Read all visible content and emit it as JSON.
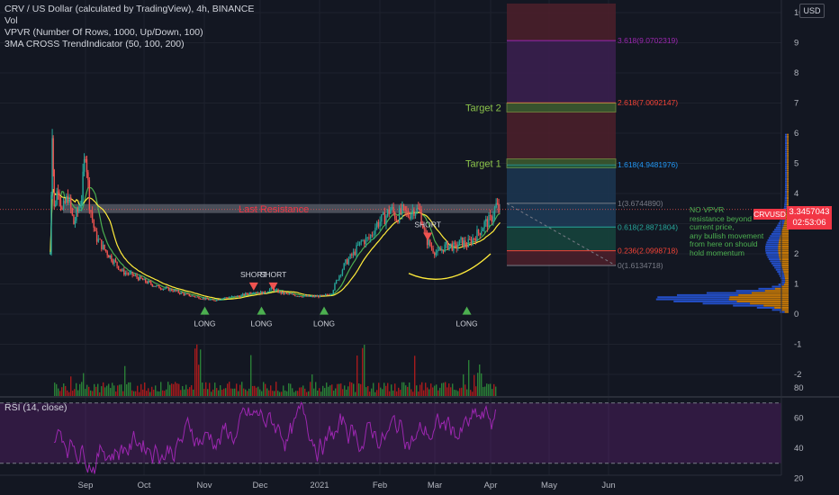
{
  "header": {
    "title": "CRV / US Dollar (calculated by TradingView), 4h, BINANCE",
    "indicators": [
      "Vol",
      "VPVR (Number Of Rows, 1000, Up/Down, 100)",
      "3MA CROSS TrendIndicator (50, 100, 200)"
    ]
  },
  "currency_button": "USD",
  "symbol_tag": "CRVUSD",
  "price_tag": {
    "price": "3.3457043",
    "countdown": "02:53:06"
  },
  "rsi_label": "RSI (14, close)",
  "note_lines": [
    "NO VPVR",
    "resistance beyond",
    "current price,",
    "any bullish movement",
    "from here on should",
    "hold momentum"
  ],
  "colors": {
    "background": "#131722",
    "up": "#26a69a",
    "down": "#ef5350",
    "ma_fast": "#4caf50",
    "ma_slow": "#ffeb3b",
    "rsi": "#9c27b0",
    "price_tag": "#f23645"
  },
  "chart_data": [
    {
      "type": "candlestick",
      "title": "CRV / US Dollar (calculated by TradingView), 4h, BINANCE",
      "x_tick_labels": [
        "Sep",
        "Oct",
        "Nov",
        "Dec",
        "2021",
        "Feb",
        "Mar",
        "Apr",
        "May",
        "Jun"
      ],
      "y_tick_labels": [
        "10",
        "9",
        "8",
        "7",
        "6",
        "5",
        "4",
        "3",
        "2",
        "1",
        "0",
        "-1",
        "-2"
      ],
      "ylim": [
        -2.5,
        10.3
      ],
      "close_series": [
        [
          "Aug 14",
          2.0
        ],
        [
          "Aug 15",
          6.2
        ],
        [
          "Aug 16",
          3.5
        ],
        [
          "Aug 18",
          4.3
        ],
        [
          "Aug 20",
          3.4
        ],
        [
          "Aug 23",
          3.9
        ],
        [
          "Aug 26",
          3.0
        ],
        [
          "Aug 28",
          3.4
        ],
        [
          "Aug 30",
          3.9
        ],
        [
          "Sep 1",
          5.5
        ],
        [
          "Sep 3",
          3.7
        ],
        [
          "Sep 6",
          2.6
        ],
        [
          "Sep 10",
          2.2
        ],
        [
          "Sep 15",
          1.8
        ],
        [
          "Sep 20",
          1.4
        ],
        [
          "Sep 25",
          1.3
        ],
        [
          "Oct 1",
          1.1
        ],
        [
          "Oct 8",
          0.9
        ],
        [
          "Oct 15",
          0.8
        ],
        [
          "Oct 22",
          0.65
        ],
        [
          "Oct 29",
          0.55
        ],
        [
          "Nov 5",
          0.45
        ],
        [
          "Nov 12",
          0.55
        ],
        [
          "Nov 19",
          0.6
        ],
        [
          "Nov 26",
          0.75
        ],
        [
          "Dec 1",
          0.7
        ],
        [
          "Dec 5",
          0.85
        ],
        [
          "Dec 10",
          0.7
        ],
        [
          "Dec 15",
          0.65
        ],
        [
          "Dec 20",
          0.6
        ],
        [
          "Dec 25",
          0.58
        ],
        [
          "Jan 1",
          0.6
        ],
        [
          "Jan 5",
          0.72
        ],
        [
          "Jan 8",
          1.2
        ],
        [
          "Jan 12",
          1.7
        ],
        [
          "Jan 16",
          2.0
        ],
        [
          "Jan 20",
          2.4
        ],
        [
          "Jan 24",
          2.5
        ],
        [
          "Jan 28",
          3.0
        ],
        [
          "Feb 1",
          3.2
        ],
        [
          "Feb 4",
          3.5
        ],
        [
          "Feb 7",
          3.2
        ],
        [
          "Feb 10",
          3.4
        ],
        [
          "Feb 13",
          3.3
        ],
        [
          "Feb 16",
          3.5
        ],
        [
          "Feb 19",
          3.4
        ],
        [
          "Feb 22",
          2.5
        ],
        [
          "Feb 25",
          2.2
        ],
        [
          "Feb 28",
          2.0
        ],
        [
          "Mar 3",
          2.2
        ],
        [
          "Mar 6",
          2.3
        ],
        [
          "Mar 9",
          2.2
        ],
        [
          "Mar 12",
          2.4
        ],
        [
          "Mar 15",
          2.3
        ],
        [
          "Mar 18",
          2.5
        ],
        [
          "Mar 21",
          2.7
        ],
        [
          "Mar 24",
          3.0
        ],
        [
          "Mar 27",
          3.1
        ],
        [
          "Mar 30",
          3.6
        ],
        [
          "Apr 1",
          3.3457043
        ]
      ],
      "horizontal_levels": [
        {
          "label": "Last Resistance",
          "y": 3.5
        },
        {
          "label": "Target 1",
          "y": 5.0
        },
        {
          "label": "Target 2",
          "y": 6.85
        }
      ],
      "fibonacci_levels": [
        {
          "label": "3.618(9.0702319)",
          "y": 9.0702319,
          "color": "#9c27b0"
        },
        {
          "label": "2.618(7.0092147)",
          "y": 7.0092147,
          "color": "#f44336"
        },
        {
          "label": "1.618(4.9481976)",
          "y": 4.9481976,
          "color": "#2196f3"
        },
        {
          "label": "1(3.6744890)",
          "y": 3.674489,
          "color": "#787b86"
        },
        {
          "label": "0.618(2.8871804)",
          "y": 2.8871804,
          "color": "#26a69a"
        },
        {
          "label": "0.236(2.0998718)",
          "y": 2.0998718,
          "color": "#f44336"
        },
        {
          "label": "0(1.6134718)",
          "y": 1.6134718,
          "color": "#787b86"
        }
      ],
      "signals": [
        {
          "label": "LONG",
          "date": "Nov 1",
          "direction": "up"
        },
        {
          "label": "SHORT",
          "date": "Nov 26",
          "direction": "down"
        },
        {
          "label": "LONG",
          "date": "Nov 30",
          "direction": "up"
        },
        {
          "label": "SHORT",
          "date": "Dec 6",
          "direction": "down"
        },
        {
          "label": "LONG",
          "date": "Jan 1",
          "direction": "up"
        },
        {
          "label": "SHORT",
          "date": "Feb 23",
          "direction": "down"
        },
        {
          "label": "LONG",
          "date": "Mar 15",
          "direction": "up"
        }
      ]
    },
    {
      "type": "line",
      "title": "RSI (14, close)",
      "y_tick_labels": [
        "80",
        "60",
        "40",
        "20"
      ],
      "ylim": [
        14,
        88
      ],
      "bands": [
        70,
        30
      ]
    }
  ]
}
